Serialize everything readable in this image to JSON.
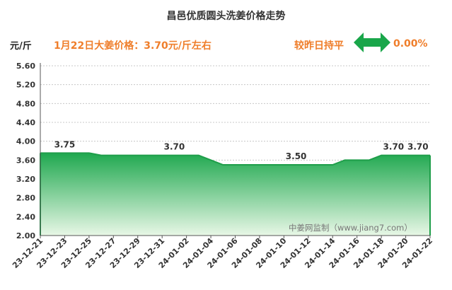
{
  "header": {
    "title": "昌邑优质圆头洗姜价格走势",
    "unit": "元/斤",
    "price_note": "1月22日大姜价格：3.70元/斤左右",
    "compare_label": "较昨日持平",
    "change_value": "0.00%",
    "trend_icon": "double-arrow-icon"
  },
  "watermark": "中姜网监制（www.jiang7.com）",
  "colors": {
    "accent": "#ef7e2b",
    "line": "#1f9e4a",
    "fill_top": "#1fa84f",
    "fill_bottom": "#e8f7e6",
    "arrow": "#19a64a"
  },
  "chart_data": {
    "type": "area",
    "title": "昌邑优质圆头洗姜价格走势",
    "ylabel": "元/斤",
    "xlabel": "",
    "ylim": [
      2.0,
      5.6
    ],
    "yticks": [
      "2.00",
      "2.40",
      "2.80",
      "3.20",
      "3.60",
      "4.00",
      "4.40",
      "4.80",
      "5.20",
      "5.60"
    ],
    "grid": true,
    "x": [
      "23-12-21",
      "23-12-22",
      "23-12-23",
      "23-12-24",
      "23-12-25",
      "23-12-26",
      "23-12-27",
      "23-12-28",
      "23-12-29",
      "23-12-30",
      "23-12-31",
      "24-01-01",
      "24-01-02",
      "24-01-03",
      "24-01-04",
      "24-01-05",
      "24-01-06",
      "24-01-07",
      "24-01-08",
      "24-01-09",
      "24-01-10",
      "24-01-11",
      "24-01-12",
      "24-01-13",
      "24-01-14",
      "24-01-15",
      "24-01-16",
      "24-01-17",
      "24-01-18",
      "24-01-19",
      "24-01-20",
      "24-01-21",
      "24-01-22"
    ],
    "xticks": [
      "23-12-21",
      "23-12-23",
      "23-12-25",
      "23-12-27",
      "23-12-29",
      "23-12-31",
      "24-01-02",
      "24-01-04",
      "24-01-06",
      "24-01-08",
      "24-01-10",
      "24-01-12",
      "24-01-14",
      "24-01-16",
      "24-01-18",
      "24-01-20",
      "24-01-22"
    ],
    "values": [
      3.75,
      3.75,
      3.75,
      3.75,
      3.75,
      3.7,
      3.7,
      3.7,
      3.7,
      3.7,
      3.7,
      3.7,
      3.7,
      3.7,
      3.6,
      3.5,
      3.5,
      3.5,
      3.5,
      3.5,
      3.5,
      3.5,
      3.5,
      3.5,
      3.5,
      3.6,
      3.6,
      3.6,
      3.7,
      3.7,
      3.7,
      3.7,
      3.7
    ],
    "annotations": [
      {
        "x": "23-12-23",
        "label": "3.75"
      },
      {
        "x": "24-01-01",
        "label": "3.70"
      },
      {
        "x": "24-01-11",
        "label": "3.50"
      },
      {
        "x": "24-01-19",
        "label": "3.70"
      },
      {
        "x": "24-01-21",
        "label": "3.70"
      }
    ]
  }
}
